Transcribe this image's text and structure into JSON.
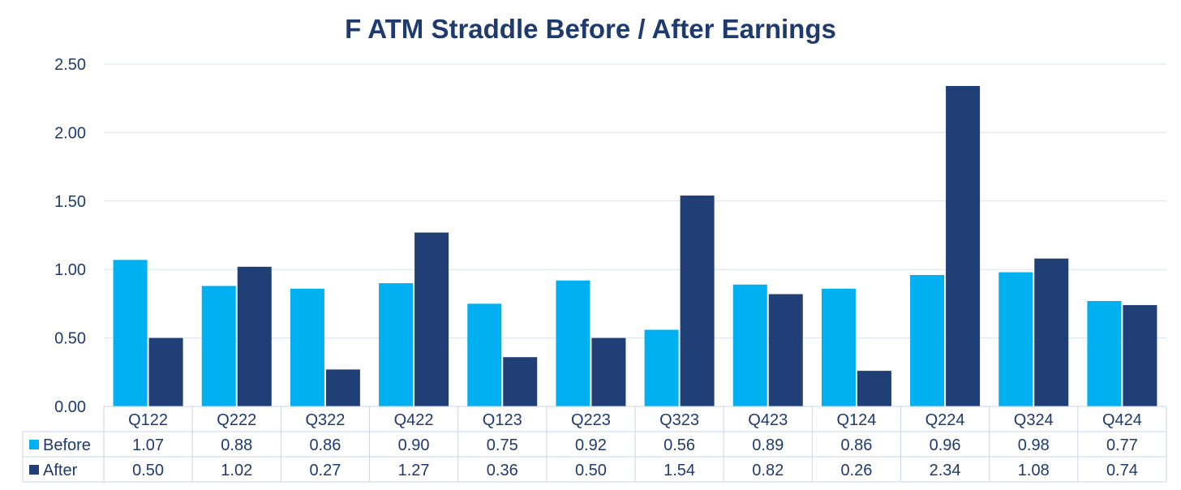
{
  "chart_data": {
    "type": "bar",
    "title": "F ATM Straddle Before / After Earnings",
    "xlabel": "",
    "ylabel": "",
    "ylim": [
      0,
      2.5
    ],
    "yticks": [
      "0.00",
      "0.50",
      "1.00",
      "1.50",
      "2.00",
      "2.50"
    ],
    "grid": true,
    "legend": "data-table",
    "categories": [
      "Q122",
      "Q222",
      "Q322",
      "Q422",
      "Q123",
      "Q223",
      "Q323",
      "Q423",
      "Q124",
      "Q224",
      "Q324",
      "Q424"
    ],
    "series": [
      {
        "name": "Before",
        "color": "#00B0F0",
        "values": [
          1.07,
          0.88,
          0.86,
          0.9,
          0.75,
          0.92,
          0.56,
          0.89,
          0.86,
          0.96,
          0.98,
          0.77
        ],
        "labels": [
          "1.07",
          "0.88",
          "0.86",
          "0.90",
          "0.75",
          "0.92",
          "0.56",
          "0.89",
          "0.86",
          "0.96",
          "0.98",
          "0.77"
        ]
      },
      {
        "name": "After",
        "color": "#203F77",
        "values": [
          0.5,
          1.02,
          0.27,
          1.27,
          0.36,
          0.5,
          1.54,
          0.82,
          0.26,
          2.34,
          1.08,
          0.74
        ],
        "labels": [
          "0.50",
          "1.02",
          "0.27",
          "1.27",
          "0.36",
          "0.50",
          "1.54",
          "0.82",
          "0.26",
          "2.34",
          "1.08",
          "0.74"
        ]
      }
    ]
  },
  "colors": {
    "title": "#1F3B6E",
    "axis_text": "#1F3B6E",
    "grid": "#D9E2EF",
    "table_border": "#C9D6E8"
  }
}
